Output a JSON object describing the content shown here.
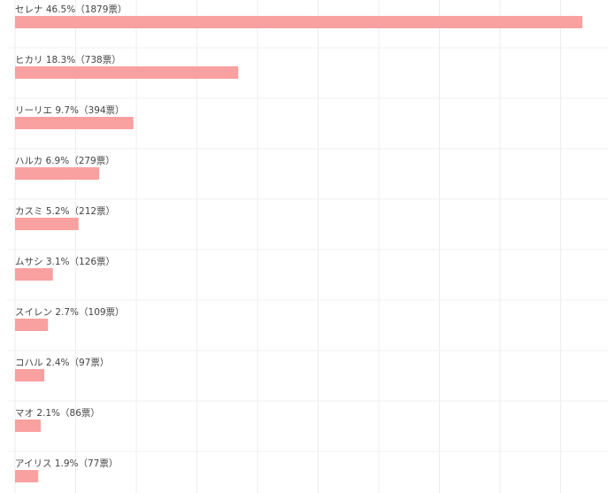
{
  "chart_data": {
    "type": "bar",
    "orientation": "horizontal",
    "title": "",
    "xlabel": "",
    "ylabel": "",
    "bar_color": "#f9a0a0",
    "grid": true,
    "legend": "none",
    "xlim": [
      0,
      47
    ],
    "categories": [
      "セレナ",
      "ヒカリ",
      "リーリエ",
      "ハルカ",
      "カスミ",
      "ムサシ",
      "スイレン",
      "コハル",
      "マオ",
      "アイリス"
    ],
    "values": [
      46.5,
      18.3,
      9.7,
      6.9,
      5.2,
      3.1,
      2.7,
      2.4,
      2.1,
      1.9
    ],
    "votes": [
      1879,
      738,
      394,
      279,
      212,
      126,
      109,
      97,
      86,
      77
    ],
    "labels": [
      "セレナ 46.5%（1879票）",
      "ヒカリ 18.3%（738票）",
      "リーリエ 9.7%（394票）",
      "ハルカ 6.9%（279票）",
      "カスミ 5.2%（212票）",
      "ムサシ 3.1%（126票）",
      "スイレン 2.7%（109票）",
      "コハル 2.4%（97票）",
      "マオ 2.1%（86票）",
      "アイリス 1.9%（77票）"
    ]
  }
}
